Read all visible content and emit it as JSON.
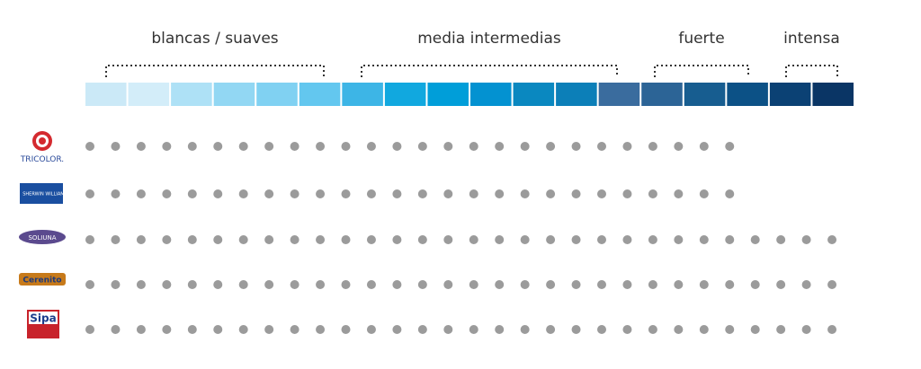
{
  "groups": [
    "blancas / suaves",
    "media intermedias",
    "fuerte",
    "intensa"
  ],
  "swatches": [
    "#cbe9f7",
    "#d3edf9",
    "#aee1f6",
    "#92d7f3",
    "#80d1f2",
    "#63c7ef",
    "#3db5e6",
    "#11a8df",
    "#009ed9",
    "#0392d1",
    "#0a88c0",
    "#0c7fb8",
    "#3a6c9e",
    "#2c6496",
    "#175d90",
    "#0c5186",
    "#0b4174",
    "#0a3565"
  ],
  "dot_color": "#9b9b9b",
  "brands": [
    {
      "label": "TRICOLOR.",
      "dots": 26
    },
    {
      "label": "SHERWIN WILLIAMS",
      "dots": 26
    },
    {
      "label": "SOLIUNA",
      "dots": 30
    },
    {
      "label": "Cerenito",
      "dots": 30
    },
    {
      "label": "Sipa",
      "dots": 30
    }
  ]
}
